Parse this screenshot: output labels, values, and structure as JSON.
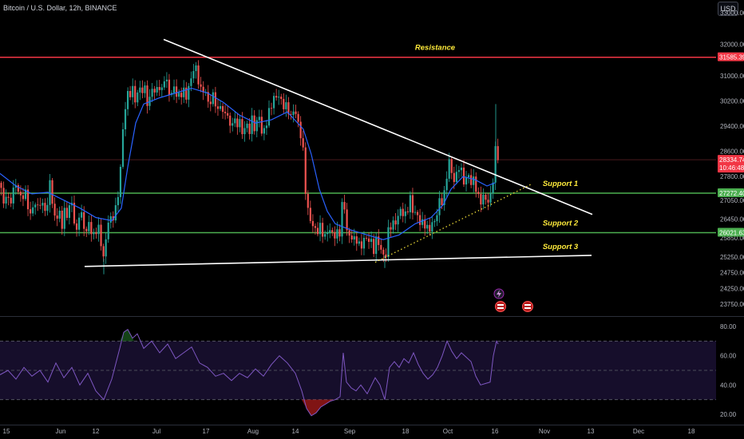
{
  "header": {
    "title": "Bitcoin / U.S. Dollar, 12h, BINANCE",
    "currency_button": "USD"
  },
  "colors": {
    "background": "#000000",
    "bull": "#26a69a",
    "bear": "#ef5350",
    "ma_line": "#2962ff",
    "resistance": "#f23645",
    "support": "#4caf50",
    "trendline": "#ffffff",
    "annotation": "#ffeb3b",
    "rsi_line": "#7e57c2",
    "rsi_band": "#1a1033"
  },
  "chart_data": [
    {
      "type": "candlestick",
      "title": "Bitcoin / U.S. Dollar, 12h, BINANCE",
      "x_tick_labels": [
        "15",
        "Jun",
        "12",
        "Jul",
        "17",
        "Aug",
        "14",
        "Sep",
        "18",
        "Oct",
        "16",
        "Nov",
        "13",
        "Dec",
        "18"
      ],
      "y_tick_labels": [
        33000,
        32000,
        31000,
        30200,
        29400,
        28600,
        27800,
        27050,
        26450,
        25850,
        25250,
        24750,
        24250,
        23750
      ],
      "ylim": [
        23400,
        33400
      ],
      "price_labels": [
        {
          "value": "31585.39",
          "color": "#f23645"
        },
        {
          "value": "28334.74",
          "sub": "10:46:48",
          "color": "#f23645"
        },
        {
          "value": "27272.40",
          "color": "#4caf50"
        },
        {
          "value": "26021.63",
          "color": "#4caf50"
        }
      ],
      "close_path": [
        [
          0,
          27600
        ],
        [
          5,
          26800
        ],
        [
          8,
          27400
        ],
        [
          12,
          26900
        ],
        [
          16,
          27200
        ],
        [
          20,
          27600
        ],
        [
          24,
          27300
        ],
        [
          28,
          27100
        ],
        [
          32,
          27200
        ],
        [
          38,
          26600
        ],
        [
          42,
          27000
        ],
        [
          46,
          26700
        ],
        [
          50,
          27000
        ],
        [
          55,
          26900
        ],
        [
          60,
          26700
        ],
        [
          63,
          27900
        ],
        [
          66,
          26800
        ],
        [
          70,
          26500
        ],
        [
          74,
          26600
        ],
        [
          78,
          26200
        ],
        [
          82,
          27000
        ],
        [
          85,
          26400
        ],
        [
          88,
          27100
        ],
        [
          92,
          26600
        ],
        [
          95,
          25900
        ],
        [
          98,
          26400
        ],
        [
          100,
          26900
        ],
        [
          104,
          26200
        ],
        [
          108,
          26000
        ],
        [
          112,
          26500
        ],
        [
          116,
          25800
        ],
        [
          120,
          26000
        ],
        [
          124,
          26200
        ],
        [
          128,
          25500
        ],
        [
          130,
          25200
        ],
        [
          133,
          25800
        ],
        [
          136,
          26400
        ],
        [
          140,
          26500
        ],
        [
          145,
          26800
        ],
        [
          149,
          27300
        ],
        [
          152,
          28400
        ],
        [
          155,
          29800
        ],
        [
          158,
          30200
        ],
        [
          161,
          30500
        ],
        [
          164,
          30300
        ],
        [
          167,
          30600
        ],
        [
          170,
          30200
        ],
        [
          174,
          30700
        ],
        [
          178,
          30400
        ],
        [
          182,
          30600
        ],
        [
          186,
          30000
        ],
        [
          190,
          30700
        ],
        [
          194,
          30300
        ],
        [
          198,
          30800
        ],
        [
          202,
          30500
        ],
        [
          206,
          30900
        ],
        [
          210,
          30600
        ],
        [
          214,
          30400
        ],
        [
          218,
          30700
        ],
        [
          222,
          30200
        ],
        [
          226,
          30400
        ],
        [
          230,
          30600
        ],
        [
          234,
          30300
        ],
        [
          238,
          30700
        ],
        [
          242,
          31200
        ],
        [
          245,
          31400
        ],
        [
          248,
          30900
        ],
        [
          252,
          30400
        ],
        [
          256,
          30600
        ],
        [
          260,
          30300
        ],
        [
          264,
          30100
        ],
        [
          268,
          30400
        ],
        [
          272,
          29800
        ],
        [
          276,
          30200
        ],
        [
          280,
          29600
        ],
        [
          284,
          29900
        ],
        [
          288,
          29400
        ],
        [
          292,
          29700
        ],
        [
          296,
          29300
        ],
        [
          300,
          29600
        ],
        [
          304,
          29200
        ],
        [
          308,
          29500
        ],
        [
          312,
          29100
        ],
        [
          316,
          29700
        ],
        [
          320,
          29300
        ],
        [
          324,
          29800
        ],
        [
          328,
          29100
        ],
        [
          332,
          29400
        ],
        [
          336,
          29800
        ],
        [
          340,
          30000
        ],
        [
          344,
          30300
        ],
        [
          348,
          30500
        ],
        [
          352,
          30200
        ],
        [
          356,
          29900
        ],
        [
          360,
          30100
        ],
        [
          364,
          29700
        ],
        [
          368,
          29900
        ],
        [
          372,
          29600
        ],
        [
          376,
          29300
        ],
        [
          380,
          28600
        ],
        [
          383,
          27200
        ],
        [
          386,
          26600
        ],
        [
          390,
          26400
        ],
        [
          394,
          26200
        ],
        [
          398,
          26000
        ],
        [
          402,
          26200
        ],
        [
          406,
          25900
        ],
        [
          410,
          26100
        ],
        [
          414,
          26000
        ],
        [
          418,
          25900
        ],
        [
          422,
          26100
        ],
        [
          426,
          26000
        ],
        [
          430,
          27300
        ],
        [
          433,
          26300
        ],
        [
          436,
          26000
        ],
        [
          440,
          25900
        ],
        [
          444,
          25700
        ],
        [
          448,
          25800
        ],
        [
          452,
          25600
        ],
        [
          456,
          25800
        ],
        [
          460,
          25700
        ],
        [
          464,
          25900
        ],
        [
          468,
          25500
        ],
        [
          472,
          25800
        ],
        [
          476,
          25500
        ],
        [
          480,
          25400
        ],
        [
          483,
          25250
        ],
        [
          486,
          26000
        ],
        [
          490,
          26200
        ],
        [
          494,
          26400
        ],
        [
          498,
          26500
        ],
        [
          502,
          26700
        ],
        [
          506,
          26500
        ],
        [
          510,
          26800
        ],
        [
          514,
          27100
        ],
        [
          518,
          26500
        ],
        [
          522,
          26700
        ],
        [
          526,
          26400
        ],
        [
          530,
          26300
        ],
        [
          534,
          26100
        ],
        [
          538,
          26200
        ],
        [
          542,
          26400
        ],
        [
          546,
          26300
        ],
        [
          550,
          27000
        ],
        [
          554,
          27100
        ],
        [
          558,
          27400
        ],
        [
          562,
          28300
        ],
        [
          566,
          27900
        ],
        [
          570,
          27700
        ],
        [
          574,
          28100
        ],
        [
          578,
          27900
        ],
        [
          582,
          27600
        ],
        [
          586,
          28000
        ],
        [
          590,
          27500
        ],
        [
          594,
          27700
        ],
        [
          598,
          27300
        ],
        [
          602,
          27000
        ],
        [
          606,
          27100
        ],
        [
          610,
          27000
        ],
        [
          614,
          27200
        ],
        [
          617,
          27500
        ],
        [
          620,
          28500
        ],
        [
          622,
          28700
        ],
        [
          624,
          28350
        ]
      ],
      "spikes": [
        [
          621,
          30100
        ],
        [
          130,
          24700
        ],
        [
          482,
          24900
        ]
      ],
      "ma_path": [
        [
          0,
          27900
        ],
        [
          20,
          27500
        ],
        [
          40,
          27250
        ],
        [
          60,
          27300
        ],
        [
          80,
          27050
        ],
        [
          100,
          26800
        ],
        [
          120,
          26500
        ],
        [
          140,
          26400
        ],
        [
          152,
          26800
        ],
        [
          160,
          28100
        ],
        [
          170,
          29500
        ],
        [
          180,
          30100
        ],
        [
          200,
          30300
        ],
        [
          220,
          30450
        ],
        [
          240,
          30600
        ],
        [
          260,
          30450
        ],
        [
          280,
          30150
        ],
        [
          300,
          29750
        ],
        [
          320,
          29500
        ],
        [
          340,
          29600
        ],
        [
          360,
          29850
        ],
        [
          380,
          29300
        ],
        [
          390,
          28500
        ],
        [
          400,
          27400
        ],
        [
          410,
          26700
        ],
        [
          420,
          26300
        ],
        [
          430,
          26200
        ],
        [
          440,
          26100
        ],
        [
          460,
          25950
        ],
        [
          480,
          25800
        ],
        [
          500,
          25950
        ],
        [
          520,
          26300
        ],
        [
          540,
          26500
        ],
        [
          555,
          26900
        ],
        [
          565,
          27400
        ],
        [
          580,
          27800
        ],
        [
          595,
          27700
        ],
        [
          610,
          27500
        ],
        [
          620,
          27600
        ]
      ],
      "lines": [
        {
          "kind": "resistance",
          "label": "Resistance",
          "y": 31585
        },
        {
          "kind": "support",
          "label": "Support 1",
          "y": 27272
        },
        {
          "kind": "support",
          "label": "Support 2",
          "y": 26021
        },
        {
          "kind": "neutral",
          "label": "",
          "y": 28334
        }
      ],
      "trendlines": [
        {
          "label": "",
          "from": [
            205,
            32150
          ],
          "to": [
            742,
            26600
          ],
          "style": "solid"
        },
        {
          "label": "Support 3",
          "from": [
            106,
            24950
          ],
          "to": [
            741,
            25300
          ],
          "style": "solid"
        },
        {
          "label": "",
          "from": [
            470,
            25080
          ],
          "to": [
            665,
            27550
          ],
          "style": "dotted"
        }
      ]
    },
    {
      "type": "line",
      "title": "",
      "y_tick_labels": [
        80,
        60,
        40,
        20
      ],
      "ylim": [
        14,
        86
      ],
      "bands": [
        70,
        50,
        30
      ],
      "rsi_path": [
        [
          0,
          47
        ],
        [
          10,
          50
        ],
        [
          20,
          44
        ],
        [
          30,
          52
        ],
        [
          40,
          46
        ],
        [
          50,
          50
        ],
        [
          60,
          42
        ],
        [
          70,
          55
        ],
        [
          80,
          45
        ],
        [
          90,
          52
        ],
        [
          100,
          40
        ],
        [
          110,
          48
        ],
        [
          120,
          36
        ],
        [
          130,
          30
        ],
        [
          140,
          44
        ],
        [
          150,
          65
        ],
        [
          155,
          76
        ],
        [
          160,
          78
        ],
        [
          166,
          72
        ],
        [
          172,
          75
        ],
        [
          180,
          65
        ],
        [
          190,
          70
        ],
        [
          200,
          62
        ],
        [
          210,
          68
        ],
        [
          220,
          58
        ],
        [
          230,
          62
        ],
        [
          240,
          66
        ],
        [
          250,
          55
        ],
        [
          260,
          52
        ],
        [
          270,
          46
        ],
        [
          280,
          48
        ],
        [
          290,
          43
        ],
        [
          300,
          48
        ],
        [
          310,
          45
        ],
        [
          320,
          51
        ],
        [
          330,
          46
        ],
        [
          340,
          54
        ],
        [
          350,
          60
        ],
        [
          360,
          55
        ],
        [
          370,
          48
        ],
        [
          378,
          36
        ],
        [
          384,
          24
        ],
        [
          390,
          19
        ],
        [
          396,
          21
        ],
        [
          402,
          25
        ],
        [
          408,
          27
        ],
        [
          414,
          29
        ],
        [
          420,
          30
        ],
        [
          426,
          32
        ],
        [
          430,
          62
        ],
        [
          434,
          42
        ],
        [
          440,
          38
        ],
        [
          446,
          36
        ],
        [
          452,
          40
        ],
        [
          460,
          34
        ],
        [
          470,
          45
        ],
        [
          476,
          40
        ],
        [
          482,
          30
        ],
        [
          488,
          52
        ],
        [
          494,
          56
        ],
        [
          500,
          52
        ],
        [
          506,
          58
        ],
        [
          512,
          55
        ],
        [
          518,
          62
        ],
        [
          524,
          54
        ],
        [
          530,
          48
        ],
        [
          536,
          44
        ],
        [
          542,
          47
        ],
        [
          548,
          52
        ],
        [
          554,
          60
        ],
        [
          560,
          70
        ],
        [
          566,
          63
        ],
        [
          572,
          58
        ],
        [
          578,
          62
        ],
        [
          584,
          59
        ],
        [
          590,
          56
        ],
        [
          596,
          46
        ],
        [
          602,
          40
        ],
        [
          608,
          41
        ],
        [
          614,
          42
        ],
        [
          618,
          60
        ],
        [
          622,
          70
        ],
        [
          624,
          68
        ]
      ]
    }
  ],
  "chart_events": {
    "lightning_count": 1,
    "flag_count": 2
  }
}
